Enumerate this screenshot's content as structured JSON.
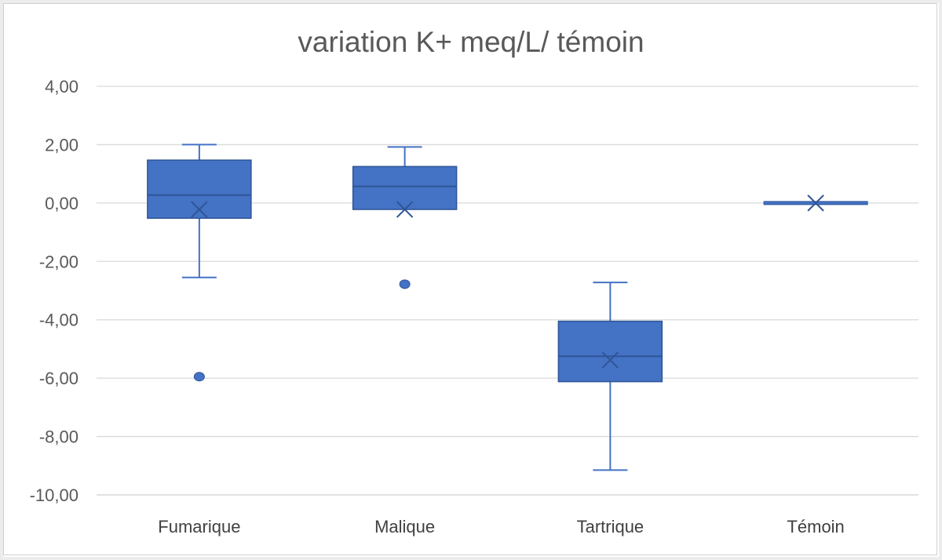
{
  "chart_data": {
    "type": "box",
    "title": "variation K+ meq/L/ témoin",
    "xlabel": "",
    "ylabel": "",
    "ylim": [
      -10,
      4
    ],
    "y_ticks": [
      4,
      2,
      0,
      -2,
      -4,
      -6,
      -8,
      -10
    ],
    "y_tick_labels": [
      "4,00",
      "2,00",
      "0,00",
      "-2,00",
      "-4,00",
      "-6,00",
      "-8,00",
      "-10,00"
    ],
    "grid": true,
    "color": "#4472C4",
    "categories": [
      "Fumarique",
      "Malique",
      "Tartrique",
      "Témoin"
    ],
    "boxes": [
      {
        "category": "Fumarique",
        "whisker_low": -2.55,
        "q1": -0.52,
        "median": 0.27,
        "q3": 1.47,
        "whisker_high": 2.0,
        "mean": -0.22,
        "outliers": [
          -5.95
        ]
      },
      {
        "category": "Malique",
        "whisker_low": -0.22,
        "q1": -0.22,
        "median": 0.57,
        "q3": 1.25,
        "whisker_high": 1.92,
        "mean": -0.22,
        "outliers": [
          -2.78
        ]
      },
      {
        "category": "Tartrique",
        "whisker_low": -9.15,
        "q1": -6.12,
        "median": -5.25,
        "q3": -4.05,
        "whisker_high": -2.72,
        "mean": -5.38,
        "outliers": []
      },
      {
        "category": "Témoin",
        "whisker_low": 0,
        "q1": 0,
        "median": 0,
        "q3": 0,
        "whisker_high": 0,
        "mean": 0,
        "outliers": []
      }
    ]
  }
}
